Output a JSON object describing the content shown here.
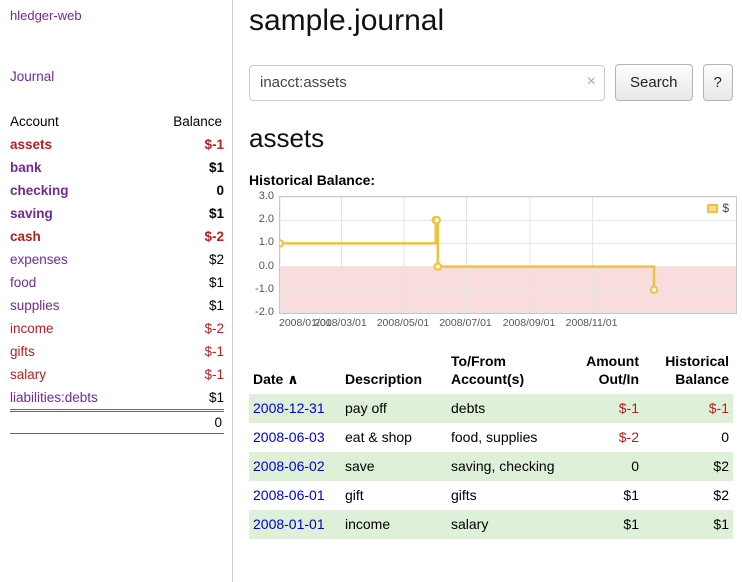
{
  "app": {
    "title": "hledger-web"
  },
  "colors": {
    "link_purple": "#6f2c91",
    "negative_red": "#b22222",
    "date_link_blue": "#0000cc",
    "row_stripe_green": "#dff0d8",
    "chart_series_yellow": "#edc240"
  },
  "sidebar": {
    "journal_link": "Journal",
    "accounts": {
      "header_account": "Account",
      "header_balance": "Balance",
      "rows": [
        {
          "name": "assets",
          "balance": "$-1"
        },
        {
          "name": "bank",
          "balance": "$1"
        },
        {
          "name": "checking",
          "balance": "0"
        },
        {
          "name": "saving",
          "balance": "$1"
        },
        {
          "name": "cash",
          "balance": "$-2"
        },
        {
          "name": "expenses",
          "balance": "$2"
        },
        {
          "name": "food",
          "balance": "$1"
        },
        {
          "name": "supplies",
          "balance": "$1"
        },
        {
          "name": "income",
          "balance": "$-2"
        },
        {
          "name": "gifts",
          "balance": "$-1"
        },
        {
          "name": "salary",
          "balance": "$-1"
        },
        {
          "name": "liabilities:debts",
          "balance": "$1"
        }
      ],
      "total": "0"
    }
  },
  "main": {
    "title": "sample.journal",
    "search": {
      "value": "inacct:assets",
      "clear_icon": "×",
      "search_button": "Search",
      "help_button": "?"
    },
    "account_heading": "assets",
    "chart_heading": "Historical Balance:",
    "register": {
      "sort_icon": "∧",
      "headers": {
        "date": "Date",
        "description": "Description",
        "accounts": "To/From Account(s)",
        "amount": "Amount Out/In",
        "balance": "Historical Balance"
      },
      "rows": [
        {
          "date": "2008-12-31",
          "description": "pay off",
          "accounts": "debts",
          "amount": "$-1",
          "balance": "$-1"
        },
        {
          "date": "2008-06-03",
          "description": "eat & shop",
          "accounts": "food, supplies",
          "amount": "$-2",
          "balance": "0"
        },
        {
          "date": "2008-06-02",
          "description": "save",
          "accounts": "saving, checking",
          "amount": "0",
          "balance": "$2"
        },
        {
          "date": "2008-06-01",
          "description": "gift",
          "accounts": "gifts",
          "amount": "$1",
          "balance": "$2"
        },
        {
          "date": "2008-01-01",
          "description": "income",
          "accounts": "salary",
          "amount": "$1",
          "balance": "$1"
        }
      ]
    }
  },
  "chart_data": {
    "type": "line",
    "title": "Historical Balance:",
    "legend": {
      "position": "top-right",
      "label": "$"
    },
    "grid_color": "#e4e4e4",
    "negative_region_color": "#f9dcdc",
    "series": [
      {
        "name": "$",
        "color": "#edc240",
        "step": true,
        "points": [
          {
            "date": "2008-01-01",
            "day": 0,
            "value": 1
          },
          {
            "date": "2008-06-01",
            "day": 152,
            "value": 2
          },
          {
            "date": "2008-06-02",
            "day": 153,
            "value": 2
          },
          {
            "date": "2008-06-03",
            "day": 154,
            "value": 0
          },
          {
            "date": "2008-12-31",
            "day": 365,
            "value": -1
          }
        ]
      }
    ],
    "x_axis": {
      "min_day": 0,
      "max_day": 445,
      "tick_days": [
        0,
        60,
        121,
        182,
        244,
        305
      ],
      "tick_labels": [
        "2008/01/01",
        "2008/03/01",
        "2008/05/01",
        "2008/07/01",
        "2008/09/01",
        "2008/11/01"
      ]
    },
    "y_axis": {
      "min": -2,
      "max": 3,
      "ticks": [
        3,
        2,
        1,
        0,
        -1,
        -2
      ]
    }
  }
}
